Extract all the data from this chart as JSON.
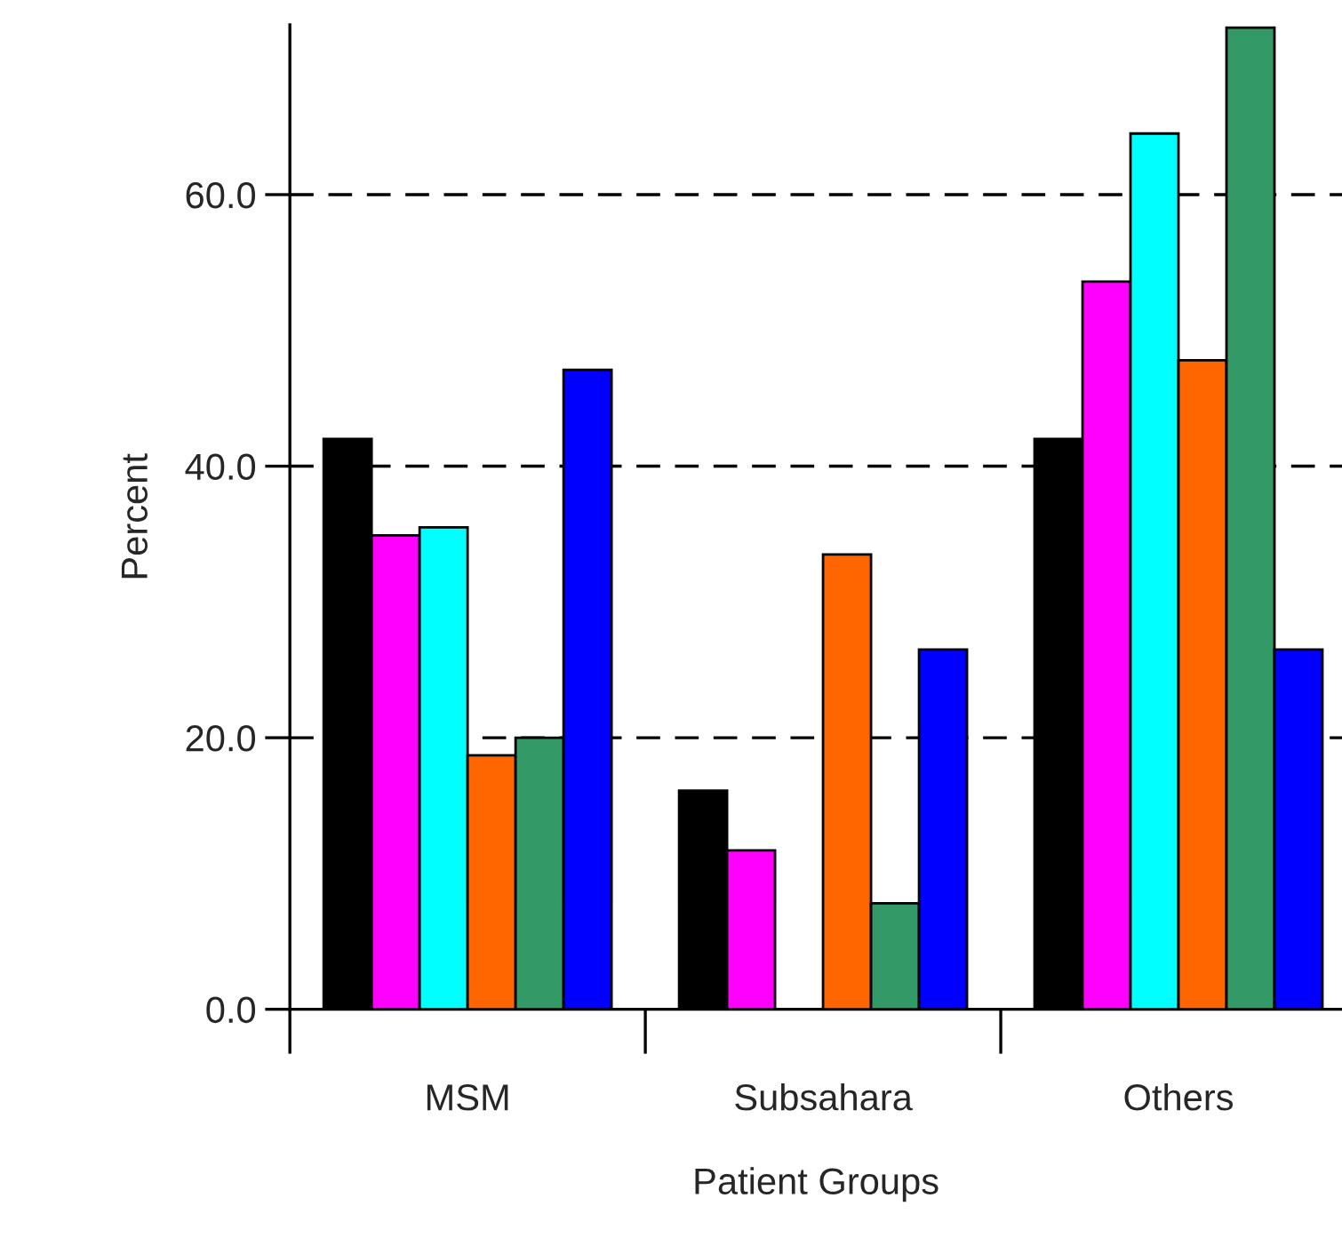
{
  "chart_data": {
    "type": "bar",
    "xlabel": "Patient Groups",
    "ylabel": "Percent",
    "categories": [
      "MSM",
      "Subsahara",
      "Others"
    ],
    "series": [
      {
        "color": "#000000",
        "values": [
          42.0,
          16.1,
          42.0
        ]
      },
      {
        "color": "#ff00ff",
        "values": [
          34.9,
          11.7,
          53.6
        ]
      },
      {
        "color": "#00ffff",
        "values": [
          35.5,
          null,
          64.5
        ]
      },
      {
        "color": "#ff6600",
        "values": [
          18.7,
          33.5,
          47.8
        ]
      },
      {
        "color": "#339966",
        "values": [
          20.0,
          7.8,
          72.3
        ]
      },
      {
        "color": "#0000ff",
        "values": [
          47.1,
          26.5,
          26.5
        ]
      }
    ],
    "ylim": [
      0,
      72.5
    ],
    "yticks": [
      {
        "value": 0,
        "label": "0.0"
      },
      {
        "value": 20,
        "label": "20.0"
      },
      {
        "value": 40,
        "label": "40.0"
      },
      {
        "value": 60,
        "label": "60.0"
      }
    ],
    "grid": "y"
  }
}
